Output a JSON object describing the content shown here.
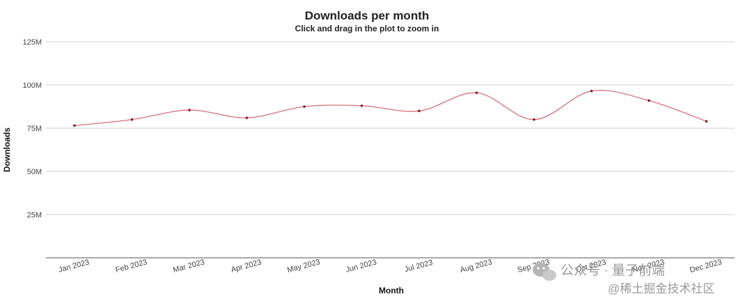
{
  "chart_data": {
    "type": "line",
    "title": "Downloads per month",
    "subtitle": "Click and drag in the plot to zoom in",
    "xlabel": "Month",
    "ylabel": "Downloads",
    "categories": [
      "Jan 2023",
      "Feb 2023",
      "Mar 2023",
      "Apr 2023",
      "May 2023",
      "Jun 2023",
      "Jul 2023",
      "Aug 2023",
      "Sep 2023",
      "Oct 2023",
      "Nov 2023",
      "Dec 2023"
    ],
    "series": [
      {
        "values": [
          76.5,
          80,
          85.5,
          81,
          87.5,
          88,
          85,
          95.5,
          80,
          96.5,
          91,
          79
        ]
      }
    ],
    "ylim": [
      0,
      125
    ],
    "yticks": [
      "25M",
      "50M",
      "75M",
      "100M",
      "125M"
    ],
    "ytick_values": [
      25,
      50,
      75,
      100,
      125
    ],
    "grid": true,
    "legend": "none",
    "colors": {
      "line": "#d9707a",
      "point": "#8b1e2a",
      "grid": "#cfcfcf"
    }
  },
  "watermark": {
    "line1": "公众号 · 量子前端",
    "line2": "@稀土掘金技术社区"
  }
}
